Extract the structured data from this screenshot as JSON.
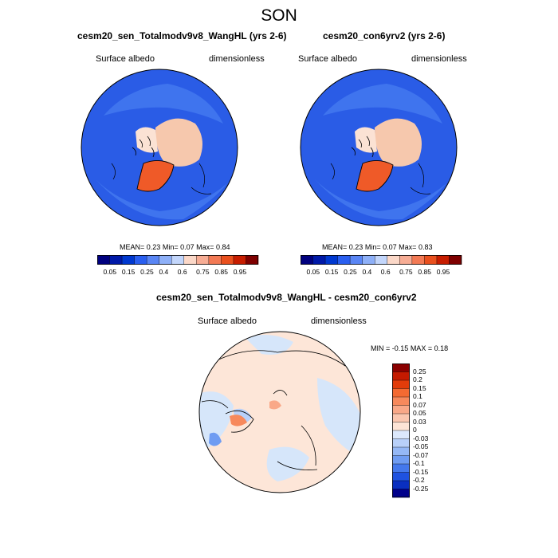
{
  "title": "SON",
  "panels": [
    {
      "title": "cesm20_sen_Totalmodv9v8_WangHL (yrs 2-6)",
      "left_label": "Surface albedo",
      "right_label": "dimensionless",
      "stats": {
        "mean_label": "MEAN=",
        "mean": "0.23",
        "min_label": "Min=",
        "min": "0.07",
        "max_label": "Max=",
        "max": "0.84"
      }
    },
    {
      "title": "cesm20_con6yrv2 (yrs 2-6)",
      "left_label": "Surface albedo",
      "right_label": "dimensionless",
      "stats": {
        "mean_label": "MEAN=",
        "mean": "0.23",
        "min_label": "Min=",
        "min": "0.07",
        "max_label": "Max=",
        "max": "0.83"
      }
    }
  ],
  "abs_colorbar": {
    "ticks": [
      "0.05",
      "0.15",
      "0.25",
      "0.4",
      "0.6",
      "0.75",
      "0.85",
      "0.95"
    ],
    "colors": [
      "#00007f",
      "#0019a8",
      "#0038d0",
      "#2a5ff0",
      "#5a86f5",
      "#8eb0f8",
      "#c3d6fb",
      "#fbd8c8",
      "#f7ad95",
      "#f37a55",
      "#e9501e",
      "#c71d00",
      "#7f0000"
    ]
  },
  "diff_panel": {
    "title": "cesm20_sen_Totalmodv9v8_WangHL - cesm20_con6yrv2",
    "left_label": "Surface albedo",
    "right_label": "dimensionless",
    "stats": {
      "min_label": "MIN =",
      "min": "-0.15",
      "max_label": "MAX =",
      "max": "0.18"
    }
  },
  "diff_colorbar": {
    "ticks": [
      "0.25",
      "0.2",
      "0.15",
      "0.1",
      "0.07",
      "0.05",
      "0.03",
      "0",
      "-0.03",
      "-0.05",
      "-0.07",
      "-0.1",
      "-0.15",
      "-0.2",
      "-0.25"
    ],
    "colors": [
      "#8b0000",
      "#c41a00",
      "#e23c0a",
      "#f46a32",
      "#f7895c",
      "#f9a888",
      "#fbc7b0",
      "#fde4d6",
      "#dce8fb",
      "#b8d0f9",
      "#95b8f6",
      "#6f9cf2",
      "#4478ec",
      "#1f52e0",
      "#0a2fc0",
      "#00008b"
    ]
  },
  "colors": {
    "ocean_blue": "#2a5ce6",
    "mid_blue": "#4a80f0",
    "ice_peach": "#f6c8ad",
    "ice_light": "#fbe2d4",
    "greenland": "#ef5a28",
    "diff_bg": "#fde6d8",
    "diff_blue": "#d6e6fa"
  }
}
